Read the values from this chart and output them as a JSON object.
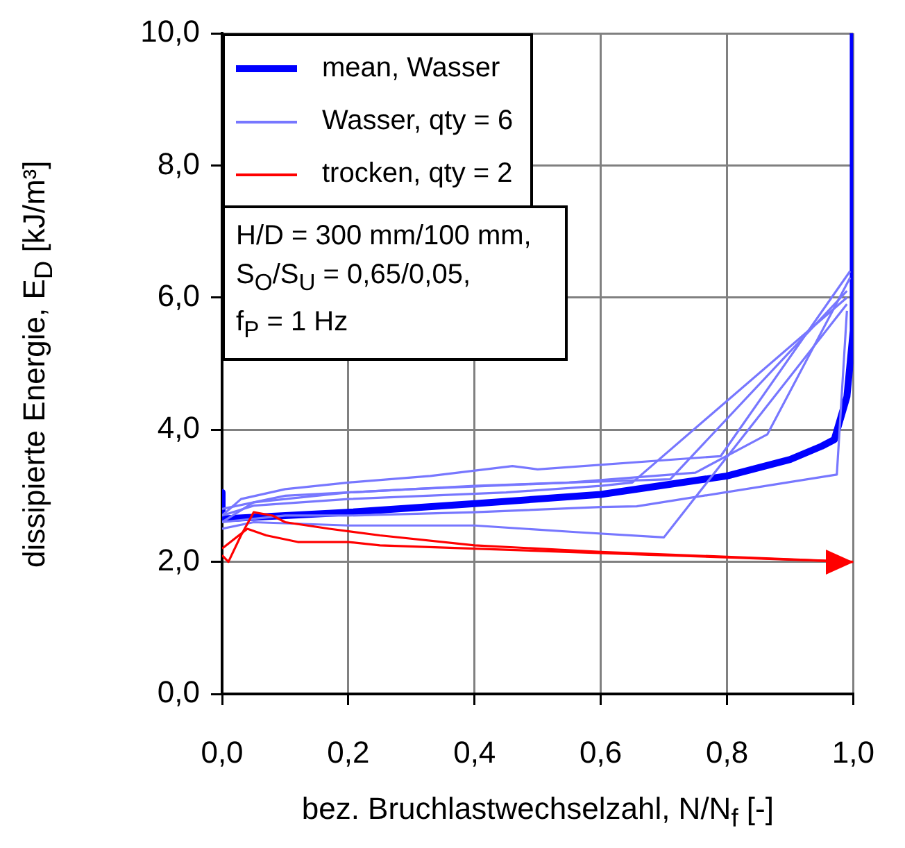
{
  "chart_data": {
    "type": "line",
    "xlabel": "bez. Bruchlastwechselzahl, N/N$_{f}$ [-]",
    "ylabel": "dissipierte Energie, E$_{D}$ [kJ/m³]",
    "xlim": [
      0,
      1
    ],
    "xticks": [
      {
        "value": 0,
        "label": "0,0"
      },
      {
        "value": 0.2,
        "label": "0,2"
      },
      {
        "value": 0.4,
        "label": "0,4"
      },
      {
        "value": 0.6,
        "label": "0,6"
      },
      {
        "value": 0.8,
        "label": "0,8"
      },
      {
        "value": 1,
        "label": "1,0"
      }
    ],
    "ylim": [
      0,
      10
    ],
    "yticks": [
      {
        "value": 0,
        "label": "0,0"
      },
      {
        "value": 2,
        "label": "2,0"
      },
      {
        "value": 4,
        "label": "4,0"
      },
      {
        "value": 6,
        "label": "6,0"
      },
      {
        "value": 8,
        "label": "8,0"
      },
      {
        "value": 10,
        "label": "10,0"
      }
    ],
    "grid": true,
    "legend": "top left",
    "marker": "none",
    "line_style": "solid",
    "annotations": [
      "H/D = 300 mm/100 mm,\nS$_{O}$/S$_{U}$ = 0,65/0,05,\nf$_{P}$ = 1 Hz"
    ],
    "series": [
      {
        "name": "mean, Wasser",
        "color": "#0000ff",
        "x": [
          0,
          0,
          0.1,
          0.2,
          0.4,
          0.6,
          0.8,
          0.9,
          0.95,
          0.97,
          0.99,
          1,
          1
        ],
        "values": [
          3.05,
          2.65,
          2.7,
          2.75,
          2.88,
          3.02,
          3.3,
          3.55,
          3.75,
          3.85,
          4.5,
          5.5,
          10
        ]
      },
      {
        "name": "Wasser, qty = 6",
        "color": "#7777ff",
        "x": [
          0,
          0.03,
          0.1,
          0.2,
          0.33,
          0.46,
          0.5,
          0.79,
          0.995
        ],
        "values": [
          2.7,
          2.95,
          3.1,
          3.2,
          3.3,
          3.45,
          3.4,
          3.6,
          6.4
        ]
      },
      {
        "color": "#7777ff",
        "x": [
          0,
          0.05,
          0.2,
          0.4,
          0.55,
          0.75,
          0.864,
          0.995
        ],
        "values": [
          2.6,
          2.9,
          3.05,
          3.15,
          3.2,
          3.35,
          3.93,
          6.3
        ]
      },
      {
        "color": "#7777ff",
        "x": [
          0,
          0.05,
          0.2,
          0.4,
          0.56,
          0.7,
          0.99
        ],
        "values": [
          2.5,
          2.6,
          2.55,
          2.55,
          2.45,
          2.37,
          5.9
        ]
      },
      {
        "color": "#7777ff",
        "x": [
          0,
          0.1,
          0.2,
          0.4,
          0.6,
          0.657,
          0.974,
          0.99
        ],
        "values": [
          2.6,
          2.7,
          2.7,
          2.75,
          2.83,
          2.84,
          3.32,
          5.8
        ]
      },
      {
        "color": "#7777ff",
        "x": [
          0,
          0.05,
          0.2,
          0.45,
          0.6,
          0.65,
          0.99
        ],
        "values": [
          2.7,
          2.85,
          2.95,
          3.05,
          3.15,
          3.2,
          6.0
        ]
      },
      {
        "color": "#7777ff",
        "x": [
          0,
          0.1,
          0.3,
          0.55,
          0.71,
          0.99
        ],
        "values": [
          2.8,
          3.0,
          3.1,
          3.2,
          3.25,
          6.1
        ]
      },
      {
        "name": "trocken, qty = 2",
        "color": "#ff0000",
        "x": [
          0,
          0.01,
          0.03,
          0.05,
          0.08,
          0.1,
          0.17,
          0.25,
          0.4,
          0.6,
          1
        ],
        "values": [
          2.1,
          2.0,
          2.4,
          2.75,
          2.7,
          2.6,
          2.5,
          2.4,
          2.25,
          2.15,
          2.0
        ]
      },
      {
        "color": "#ff0000",
        "x": [
          0,
          0.02,
          0.04,
          0.07,
          0.12,
          0.2,
          0.25,
          0.4,
          0.7,
          1
        ],
        "values": [
          2.2,
          2.35,
          2.5,
          2.4,
          2.3,
          2.3,
          2.25,
          2.2,
          2.1,
          2.0
        ]
      }
    ]
  }
}
